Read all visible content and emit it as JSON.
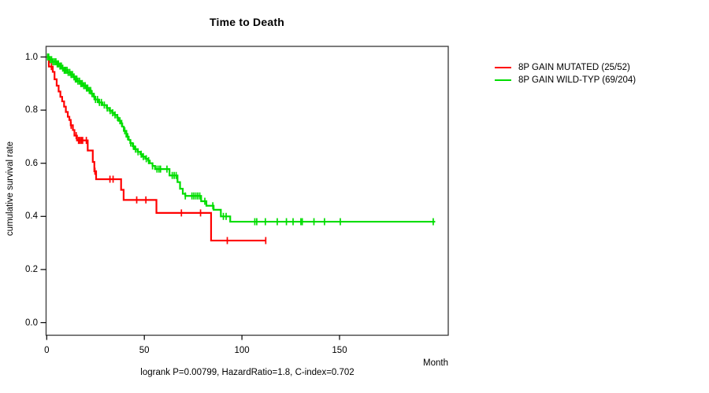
{
  "chart_data": {
    "type": "line",
    "variant": "kaplan_meier_step_survival",
    "title": "Time to Death",
    "xlabel": "Month",
    "ylabel": "cumulative survival rate",
    "xlim": [
      0,
      206
    ],
    "ylim": [
      0.0,
      1.0
    ],
    "x_ticks": [
      0,
      50,
      100,
      150
    ],
    "x_tick_labels": [
      "0",
      "50",
      "100",
      "150"
    ],
    "y_ticks": [
      0.0,
      0.2,
      0.4,
      0.6,
      0.8,
      1.0
    ],
    "y_tick_labels": [
      "0.0",
      "0.2",
      "0.4",
      "0.6",
      "0.8",
      "1.0"
    ],
    "grid": false,
    "legend_position": "right-outside",
    "annotation": "logrank P=0.00799, HazardRatio=1.8, C-index=0.702",
    "axis_color": "#444444",
    "series": [
      {
        "name": "8P GAIN MUTATED (25/52)",
        "color": "#ff0000",
        "steps": [
          [
            0,
            1.0
          ],
          [
            1.1,
            0.964
          ],
          [
            3.1,
            0.944
          ],
          [
            4.0,
            0.916
          ],
          [
            5.1,
            0.892
          ],
          [
            6.1,
            0.87
          ],
          [
            7.0,
            0.85
          ],
          [
            7.9,
            0.833
          ],
          [
            8.9,
            0.813
          ],
          [
            9.8,
            0.793
          ],
          [
            10.8,
            0.775
          ],
          [
            11.6,
            0.763
          ],
          [
            12.3,
            0.743
          ],
          [
            13.4,
            0.725
          ],
          [
            14.2,
            0.704
          ],
          [
            15.5,
            0.686
          ],
          [
            21.0,
            0.648
          ],
          [
            23.6,
            0.605
          ],
          [
            24.4,
            0.57
          ],
          [
            25.3,
            0.54
          ],
          [
            38.1,
            0.5
          ],
          [
            39.4,
            0.462
          ],
          [
            56.2,
            0.413
          ],
          [
            84.2,
            0.309
          ]
        ],
        "end_month": 112.2,
        "censor_months": [
          2.4,
          12.5,
          15.1,
          16.3,
          17.0,
          17.7,
          18.4,
          20.3,
          24.7,
          32.4,
          34.0,
          46.1,
          50.8,
          69.0,
          78.8,
          92.5,
          112.2
        ]
      },
      {
        "name": "8P GAIN WILD-TYP (69/204)",
        "color": "#00dd00",
        "steps": [
          [
            0,
            1.0
          ],
          [
            1.5,
            0.99
          ],
          [
            3,
            0.982
          ],
          [
            5,
            0.974
          ],
          [
            6.5,
            0.966
          ],
          [
            8,
            0.958
          ],
          [
            9,
            0.95
          ],
          [
            10.5,
            0.942
          ],
          [
            12,
            0.934
          ],
          [
            13.5,
            0.925
          ],
          [
            14.5,
            0.917
          ],
          [
            15.5,
            0.909
          ],
          [
            17,
            0.9
          ],
          [
            18.6,
            0.892
          ],
          [
            20,
            0.883
          ],
          [
            21.3,
            0.874
          ],
          [
            22.6,
            0.862
          ],
          [
            24,
            0.851
          ],
          [
            24.6,
            0.84
          ],
          [
            26.6,
            0.829
          ],
          [
            28.5,
            0.819
          ],
          [
            30.7,
            0.808
          ],
          [
            32,
            0.798
          ],
          [
            33.5,
            0.79
          ],
          [
            34.7,
            0.782
          ],
          [
            36,
            0.772
          ],
          [
            36.7,
            0.76
          ],
          [
            38,
            0.75
          ],
          [
            38.7,
            0.738
          ],
          [
            39.5,
            0.722
          ],
          [
            40.8,
            0.7
          ],
          [
            42,
            0.688
          ],
          [
            42.8,
            0.676
          ],
          [
            44,
            0.664
          ],
          [
            44.8,
            0.653
          ],
          [
            46.5,
            0.643
          ],
          [
            48,
            0.634
          ],
          [
            48.8,
            0.625
          ],
          [
            50.5,
            0.617
          ],
          [
            52,
            0.61
          ],
          [
            52.8,
            0.6
          ],
          [
            54.2,
            0.59
          ],
          [
            55.5,
            0.578
          ],
          [
            62.9,
            0.554
          ],
          [
            67,
            0.529
          ],
          [
            68.3,
            0.504
          ],
          [
            69.7,
            0.485
          ],
          [
            71,
            0.477
          ],
          [
            79.1,
            0.457
          ],
          [
            81.8,
            0.44
          ],
          [
            85.5,
            0.425
          ],
          [
            89.2,
            0.4
          ],
          [
            94,
            0.38
          ]
        ],
        "end_month": 199,
        "censor_months": [
          0.5,
          1,
          1.8,
          2.5,
          3.2,
          4,
          4.7,
          5.4,
          6,
          6.8,
          7.5,
          8.2,
          9,
          9.7,
          10.4,
          11,
          11.8,
          12.5,
          13.2,
          14,
          14.7,
          15.4,
          16,
          16.8,
          17.5,
          18.2,
          19,
          19.7,
          20.4,
          21,
          21.8,
          22.5,
          23.2,
          24.3,
          25,
          26,
          27,
          28,
          29.5,
          31,
          32.5,
          33.8,
          35,
          36.3,
          37.5,
          38.4,
          40,
          41.5,
          43,
          44.4,
          45.5,
          46.8,
          48.4,
          49.5,
          51,
          52.2,
          54.2,
          56.5,
          57.5,
          58.3,
          61.6,
          64.3,
          65.3,
          66.3,
          71,
          74.4,
          75.4,
          76.4,
          77.4,
          78.4,
          81,
          85.1,
          90.5,
          91.9,
          106.6,
          107.6,
          112,
          118.1,
          122.8,
          126.2,
          130.2,
          130.9,
          136.9,
          142.3,
          150.4,
          198
        ]
      }
    ]
  }
}
